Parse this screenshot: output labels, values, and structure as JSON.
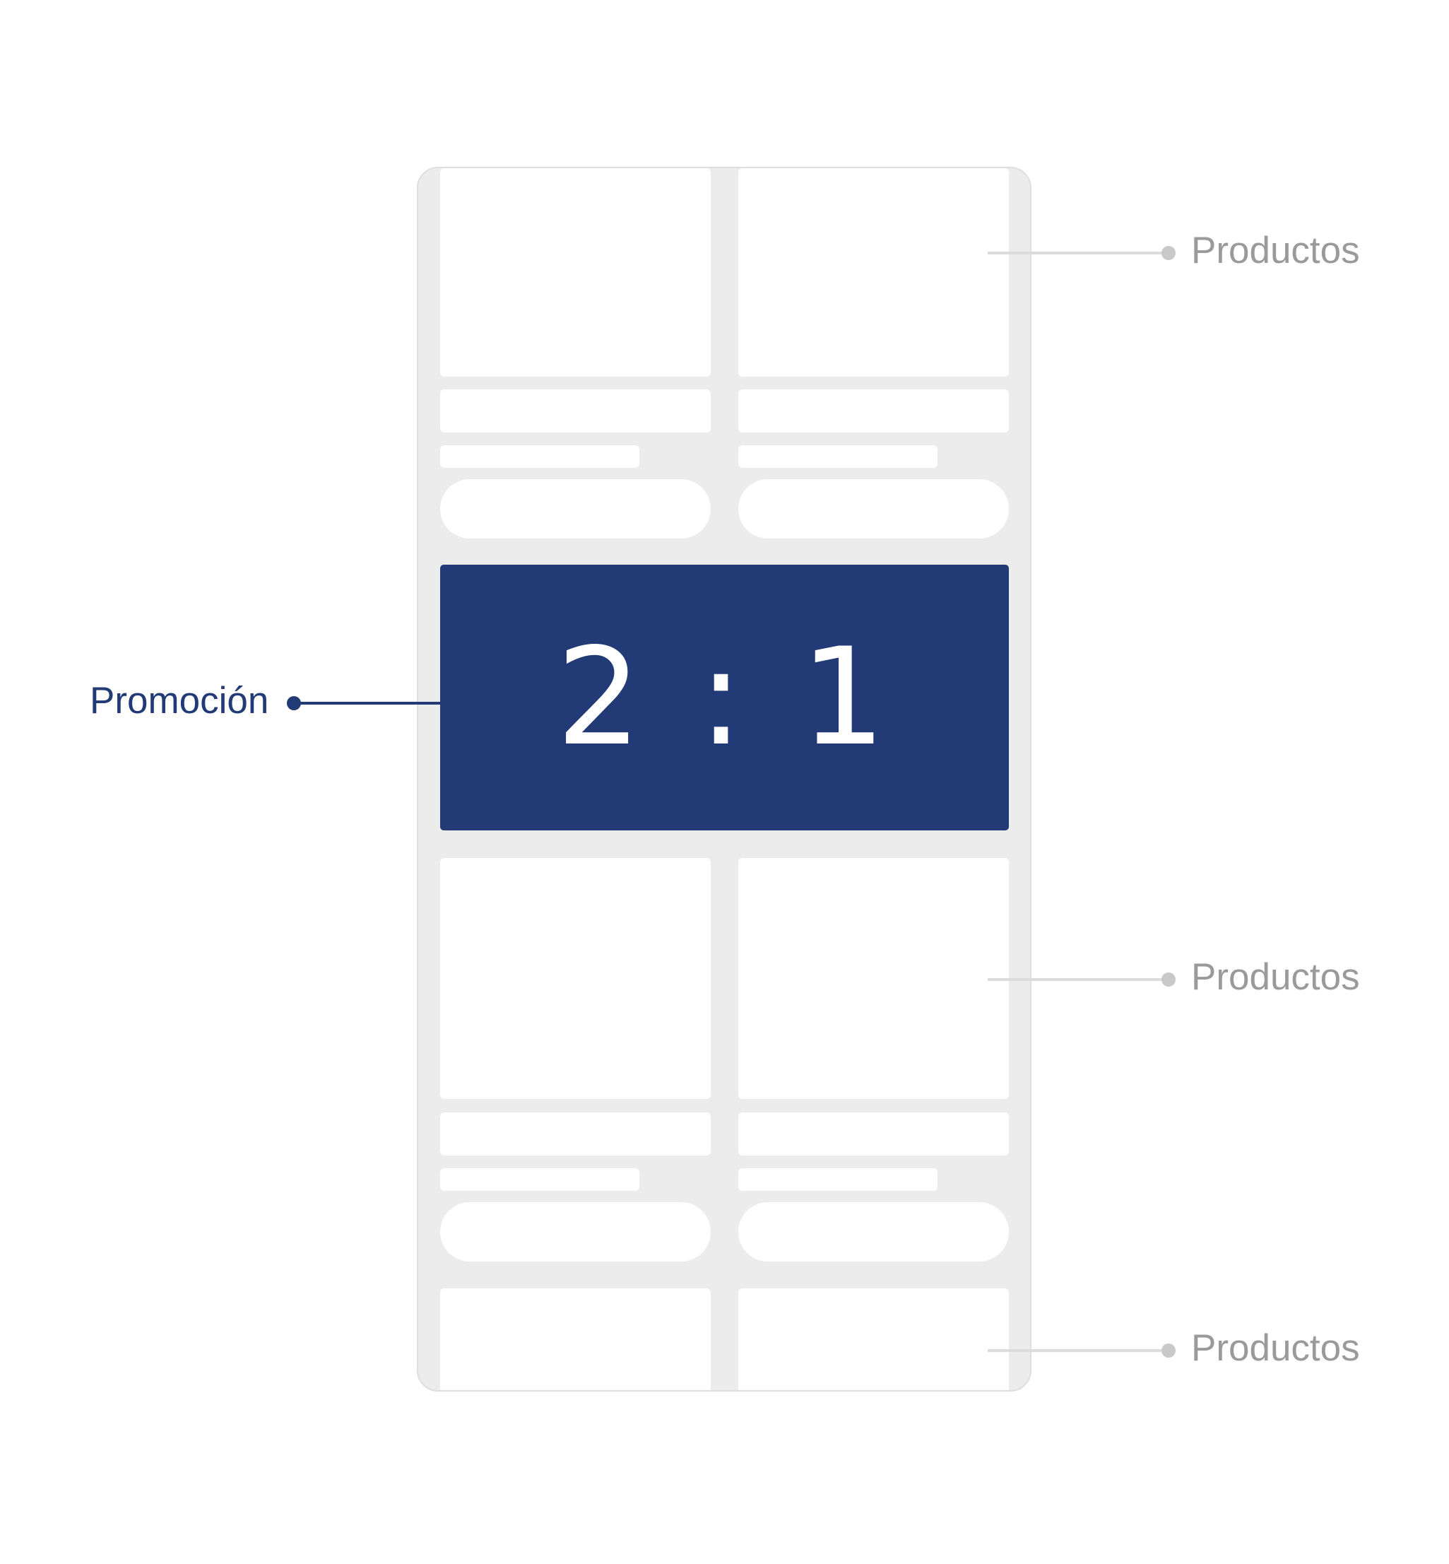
{
  "promo": {
    "ratio": "2 : 1",
    "label": "Promoción",
    "color": "#223b77"
  },
  "callouts": {
    "products_top": "Productos",
    "products_middle": "Productos",
    "products_bottom": "Productos"
  },
  "colors": {
    "frame": "#ececec",
    "card": "#ffffff",
    "callout_grey": "#9a9a9a"
  }
}
